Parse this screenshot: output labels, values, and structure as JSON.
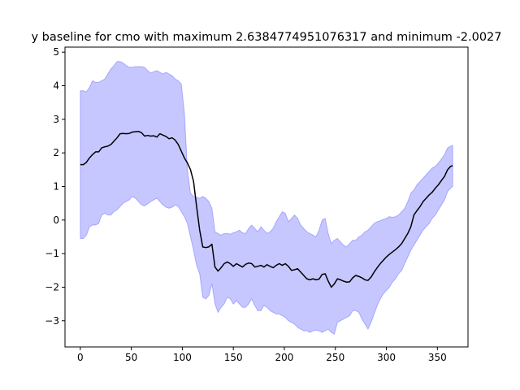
{
  "chart_data": {
    "type": "area",
    "title": "y baseline for cmo with maximum 2.6384774951076317 and minimum -2.0027",
    "xlabel": "",
    "ylabel": "",
    "xlim": [
      -15,
      380
    ],
    "ylim": [
      -3.78,
      5.15
    ],
    "xticks": [
      0,
      50,
      100,
      150,
      200,
      250,
      300,
      350
    ],
    "yticks": [
      -3,
      -2,
      -1,
      0,
      1,
      2,
      3,
      4,
      5
    ],
    "grid": false,
    "colors": {
      "line": "#000000",
      "band": "#0000ff",
      "band_alpha": 0.22,
      "axes": "#000000"
    },
    "series": [
      {
        "role": "mean",
        "x": [
          0,
          3,
          6,
          9,
          12,
          15,
          18,
          21,
          24,
          27,
          30,
          33,
          36,
          39,
          42,
          45,
          48,
          51,
          54,
          57,
          60,
          63,
          66,
          69,
          72,
          75,
          78,
          81,
          84,
          87,
          90,
          93,
          96,
          99,
          102,
          105,
          108,
          111,
          114,
          117,
          120,
          123,
          126,
          129,
          132,
          135,
          138,
          141,
          144,
          147,
          150,
          153,
          156,
          159,
          162,
          165,
          168,
          171,
          174,
          177,
          180,
          183,
          186,
          189,
          192,
          195,
          198,
          201,
          204,
          207,
          210,
          213,
          216,
          219,
          222,
          225,
          228,
          231,
          234,
          237,
          240,
          243,
          246,
          249,
          252,
          255,
          258,
          261,
          264,
          267,
          270,
          273,
          276,
          279,
          282,
          285,
          288,
          291,
          294,
          297,
          300,
          303,
          306,
          309,
          312,
          315,
          318,
          321,
          324,
          327,
          330,
          333,
          336,
          339,
          342,
          345,
          348,
          351,
          354,
          357,
          360,
          363,
          365
        ],
        "y": [
          1.65,
          1.65,
          1.72,
          1.85,
          1.95,
          2.03,
          2.03,
          2.15,
          2.18,
          2.2,
          2.25,
          2.35,
          2.45,
          2.57,
          2.58,
          2.57,
          2.58,
          2.62,
          2.63,
          2.64,
          2.6,
          2.5,
          2.52,
          2.5,
          2.51,
          2.47,
          2.57,
          2.53,
          2.49,
          2.42,
          2.45,
          2.38,
          2.25,
          2.05,
          1.85,
          1.7,
          1.5,
          1.15,
          0.4,
          -0.3,
          -0.8,
          -0.82,
          -0.8,
          -0.72,
          -1.4,
          -1.52,
          -1.42,
          -1.3,
          -1.25,
          -1.3,
          -1.38,
          -1.3,
          -1.35,
          -1.4,
          -1.32,
          -1.28,
          -1.3,
          -1.4,
          -1.38,
          -1.35,
          -1.4,
          -1.33,
          -1.38,
          -1.42,
          -1.35,
          -1.3,
          -1.35,
          -1.3,
          -1.38,
          -1.5,
          -1.48,
          -1.45,
          -1.55,
          -1.65,
          -1.75,
          -1.78,
          -1.75,
          -1.78,
          -1.76,
          -1.62,
          -1.6,
          -1.82,
          -2.0,
          -1.9,
          -1.75,
          -1.78,
          -1.82,
          -1.85,
          -1.84,
          -1.72,
          -1.65,
          -1.68,
          -1.72,
          -1.78,
          -1.8,
          -1.7,
          -1.55,
          -1.42,
          -1.3,
          -1.2,
          -1.1,
          -1.02,
          -0.95,
          -0.88,
          -0.8,
          -0.7,
          -0.55,
          -0.4,
          -0.2,
          0.15,
          0.28,
          0.4,
          0.55,
          0.65,
          0.75,
          0.83,
          0.95,
          1.05,
          1.18,
          1.3,
          1.5,
          1.6,
          1.62
        ]
      },
      {
        "role": "upper",
        "x": [
          0,
          3,
          6,
          9,
          12,
          15,
          18,
          21,
          24,
          27,
          30,
          33,
          36,
          39,
          42,
          45,
          48,
          51,
          54,
          57,
          60,
          63,
          66,
          69,
          72,
          75,
          78,
          81,
          84,
          87,
          90,
          93,
          96,
          99,
          102,
          105,
          108,
          111,
          114,
          117,
          120,
          123,
          126,
          129,
          132,
          135,
          138,
          141,
          144,
          147,
          150,
          153,
          156,
          159,
          162,
          165,
          168,
          171,
          174,
          177,
          180,
          183,
          186,
          189,
          192,
          195,
          198,
          201,
          204,
          207,
          210,
          213,
          216,
          219,
          222,
          225,
          228,
          231,
          234,
          237,
          240,
          243,
          246,
          249,
          252,
          255,
          258,
          261,
          264,
          267,
          270,
          273,
          276,
          279,
          282,
          285,
          288,
          291,
          294,
          297,
          300,
          303,
          306,
          309,
          312,
          315,
          318,
          321,
          324,
          327,
          330,
          333,
          336,
          339,
          342,
          345,
          348,
          351,
          354,
          357,
          360,
          363,
          365
        ],
        "y": [
          3.85,
          3.85,
          3.82,
          3.95,
          4.15,
          4.1,
          4.1,
          4.15,
          4.2,
          4.35,
          4.5,
          4.6,
          4.72,
          4.72,
          4.68,
          4.6,
          4.55,
          4.55,
          4.57,
          4.57,
          4.57,
          4.55,
          4.45,
          4.38,
          4.42,
          4.45,
          4.4,
          4.35,
          4.4,
          4.35,
          4.3,
          4.2,
          4.15,
          4.05,
          3.2,
          1.5,
          0.8,
          0.7,
          0.68,
          0.65,
          0.7,
          0.65,
          0.55,
          0.35,
          -0.35,
          -0.4,
          -0.45,
          -0.4,
          -0.4,
          -0.42,
          -0.38,
          -0.35,
          -0.3,
          -0.38,
          -0.4,
          -0.25,
          -0.15,
          -0.25,
          -0.35,
          -0.2,
          -0.3,
          -0.4,
          -0.35,
          -0.25,
          -0.05,
          0.1,
          0.25,
          0.2,
          -0.05,
          0.05,
          0.15,
          0.05,
          -0.15,
          -0.25,
          -0.35,
          -0.4,
          -0.45,
          -0.5,
          -0.3,
          0.0,
          0.05,
          -0.4,
          -0.7,
          -0.6,
          -0.55,
          -0.65,
          -0.75,
          -0.8,
          -0.7,
          -0.6,
          -0.6,
          -0.5,
          -0.45,
          -0.35,
          -0.3,
          -0.2,
          -0.1,
          -0.05,
          -0.02,
          0.02,
          0.05,
          0.1,
          0.08,
          0.1,
          0.15,
          0.25,
          0.35,
          0.55,
          0.8,
          0.9,
          1.05,
          1.15,
          1.25,
          1.35,
          1.45,
          1.55,
          1.6,
          1.7,
          1.82,
          1.95,
          2.15,
          2.2,
          2.22
        ]
      },
      {
        "role": "lower",
        "x": [
          0,
          3,
          6,
          9,
          12,
          15,
          18,
          21,
          24,
          27,
          30,
          33,
          36,
          39,
          42,
          45,
          48,
          51,
          54,
          57,
          60,
          63,
          66,
          69,
          72,
          75,
          78,
          81,
          84,
          87,
          90,
          93,
          96,
          99,
          102,
          105,
          108,
          111,
          114,
          117,
          120,
          123,
          126,
          129,
          132,
          135,
          138,
          141,
          144,
          147,
          150,
          153,
          156,
          159,
          162,
          165,
          168,
          171,
          174,
          177,
          180,
          183,
          186,
          189,
          192,
          195,
          198,
          201,
          204,
          207,
          210,
          213,
          216,
          219,
          222,
          225,
          228,
          231,
          234,
          237,
          240,
          243,
          246,
          249,
          252,
          255,
          258,
          261,
          264,
          267,
          270,
          273,
          276,
          279,
          282,
          285,
          288,
          291,
          294,
          297,
          300,
          303,
          306,
          309,
          312,
          315,
          318,
          321,
          324,
          327,
          330,
          333,
          336,
          339,
          342,
          345,
          348,
          351,
          354,
          357,
          360,
          363,
          365
        ],
        "y": [
          -0.55,
          -0.55,
          -0.45,
          -0.2,
          -0.15,
          -0.15,
          -0.1,
          0.15,
          0.2,
          0.15,
          0.15,
          0.25,
          0.3,
          0.4,
          0.5,
          0.55,
          0.6,
          0.7,
          0.65,
          0.55,
          0.45,
          0.42,
          0.48,
          0.55,
          0.6,
          0.65,
          0.55,
          0.45,
          0.38,
          0.35,
          0.38,
          0.45,
          0.4,
          0.25,
          0.1,
          -0.1,
          -0.5,
          -0.9,
          -1.35,
          -1.6,
          -2.3,
          -2.35,
          -2.25,
          -1.9,
          -2.5,
          -2.75,
          -2.6,
          -2.5,
          -2.3,
          -2.35,
          -2.5,
          -2.4,
          -2.5,
          -2.6,
          -2.6,
          -2.5,
          -2.35,
          -2.55,
          -2.7,
          -2.7,
          -2.55,
          -2.6,
          -2.7,
          -2.75,
          -2.8,
          -2.8,
          -2.85,
          -2.9,
          -3.0,
          -3.05,
          -3.1,
          -3.2,
          -3.25,
          -3.3,
          -3.3,
          -3.35,
          -3.3,
          -3.28,
          -3.3,
          -3.35,
          -3.3,
          -3.25,
          -3.35,
          -3.4,
          -3.05,
          -3.0,
          -2.95,
          -2.9,
          -2.85,
          -2.7,
          -2.7,
          -2.75,
          -2.95,
          -3.1,
          -3.25,
          -3.05,
          -2.8,
          -2.55,
          -2.35,
          -2.2,
          -2.1,
          -2.0,
          -1.85,
          -1.75,
          -1.6,
          -1.5,
          -1.3,
          -1.1,
          -0.9,
          -0.75,
          -0.6,
          -0.45,
          -0.3,
          -0.2,
          -0.1,
          0.05,
          0.15,
          0.3,
          0.45,
          0.6,
          0.85,
          0.95,
          1.0
        ]
      }
    ]
  }
}
